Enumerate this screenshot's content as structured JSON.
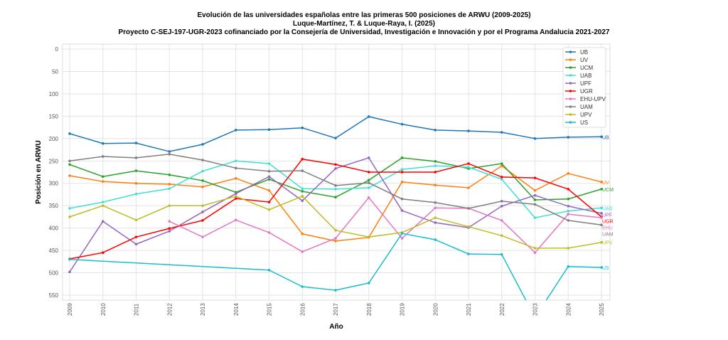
{
  "chart_data": {
    "type": "line",
    "title": "Evolución de las universidades españolas entre las primeras 500 posiciones de ARWU (2009-2025)",
    "subtitle": "Luque-Martínez, T. & Luque-Raya, I. (2025)",
    "subtitle2": "Proyecto C-SEJ-197-UGR-2023 cofinanciado por la Consejería de Universidad, Investigación e Innovación y por el Programa Andalucia 2021-2027",
    "xlabel": "Año",
    "ylabel": "Posición en ARWU",
    "ylim": [
      0,
      555
    ],
    "y_inverted": true,
    "yticks": [
      0,
      50,
      100,
      150,
      200,
      250,
      300,
      350,
      400,
      450,
      500,
      550
    ],
    "x": [
      "2009",
      "2010",
      "2011",
      "2012",
      "2013",
      "2014",
      "2015",
      "2016",
      "2017",
      "2018",
      "2019",
      "2020",
      "2021",
      "2022",
      "2023",
      "2024",
      "2025"
    ],
    "legend_placement": "top-right",
    "series": [
      {
        "name": "UB",
        "end_label": "UB",
        "color": "#1f77b4",
        "values": [
          189,
          211,
          210,
          229,
          213,
          181,
          180,
          176,
          199,
          151,
          168,
          181,
          183,
          186,
          200,
          197,
          196
        ]
      },
      {
        "name": "UV",
        "end_label": "UV",
        "color": "#ff7f0e",
        "values": [
          283,
          296,
          300,
          302,
          308,
          289,
          316,
          413,
          429,
          421,
          297,
          304,
          310,
          261,
          316,
          278,
          297
        ]
      },
      {
        "name": "UCM",
        "end_label": "UCM",
        "color": "#2ca02c",
        "values": [
          258,
          285,
          272,
          281,
          294,
          320,
          291,
          318,
          331,
          293,
          243,
          251,
          267,
          256,
          337,
          335,
          313
        ]
      },
      {
        "name": "UAB",
        "end_label": "UAB",
        "color": "#40e0d0",
        "values": [
          356,
          342,
          324,
          312,
          273,
          250,
          256,
          312,
          313,
          310,
          269,
          261,
          264,
          291,
          377,
          362,
          355
        ]
      },
      {
        "name": "UPF",
        "end_label": "UPF",
        "color": "#9467bd",
        "values": [
          498,
          385,
          436,
          407,
          364,
          323,
          285,
          339,
          267,
          243,
          361,
          388,
          399,
          351,
          327,
          351,
          367
        ]
      },
      {
        "name": "UGR",
        "end_label": "UGR",
        "color": "#ff0000",
        "values": [
          469,
          455,
          420,
          401,
          383,
          334,
          342,
          246,
          258,
          275,
          275,
          275,
          256,
          286,
          288,
          313,
          375
        ]
      },
      {
        "name": "EHU-UPV",
        "end_label": "EHU",
        "color": "#e377c2",
        "values": [
          null,
          null,
          null,
          385,
          420,
          382,
          410,
          453,
          423,
          332,
          423,
          355,
          356,
          383,
          455,
          369,
          377
        ]
      },
      {
        "name": "UAM",
        "end_label": "UAM",
        "color": "#7f7f7f",
        "values": [
          250,
          240,
          243,
          235,
          248,
          266,
          273,
          272,
          305,
          299,
          335,
          343,
          356,
          340,
          347,
          383,
          393
        ]
      },
      {
        "name": "UPV",
        "end_label": "UPV",
        "color": "#bcbd22",
        "values": [
          375,
          350,
          382,
          350,
          350,
          329,
          359,
          329,
          405,
          420,
          410,
          377,
          397,
          417,
          445,
          445,
          432
        ]
      },
      {
        "name": "US",
        "end_label": "US",
        "color": "#17becf",
        "values": [
          470,
          null,
          null,
          null,
          null,
          null,
          494,
          531,
          539,
          523,
          412,
          426,
          458,
          459,
          600,
          486,
          488
        ]
      }
    ]
  }
}
